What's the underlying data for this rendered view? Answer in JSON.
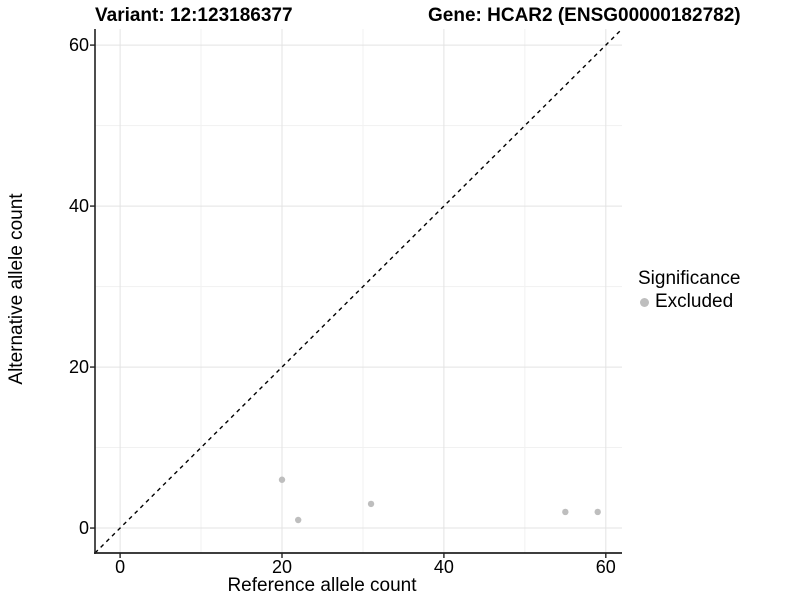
{
  "chart_data": {
    "type": "scatter",
    "title_left": "Variant: 12:123186377",
    "title_right": "Gene: HCAR2 (ENSG00000182782)",
    "xlabel": "Reference allele count",
    "ylabel": "Alternative allele count",
    "xlim": [
      -3.1,
      62
    ],
    "ylim": [
      -3.1,
      62
    ],
    "x_ticks": [
      0,
      20,
      40,
      60
    ],
    "y_ticks": [
      0,
      20,
      40,
      60
    ],
    "x_minor_ticks": [
      10,
      30,
      50
    ],
    "y_minor_ticks": [
      10,
      30,
      50
    ],
    "grid": "major and minor, light gray, white panel background",
    "reference_line": {
      "description": "identity line y = x",
      "slope": 1,
      "intercept": 0,
      "linetype": "dashed",
      "color": "#000000"
    },
    "series": [
      {
        "name": "Excluded",
        "color": "#bebebe",
        "points": [
          {
            "x": 20,
            "y": 6
          },
          {
            "x": 22,
            "y": 1
          },
          {
            "x": 31,
            "y": 3
          },
          {
            "x": 55,
            "y": 2
          },
          {
            "x": 59,
            "y": 2
          }
        ]
      }
    ],
    "legend": {
      "title": "Significance",
      "position": "right",
      "entries": [
        {
          "label": "Excluded",
          "color": "#bebebe",
          "marker": "circle"
        }
      ]
    }
  },
  "colors": {
    "background": "#ffffff",
    "axis_line": "#222222",
    "grid_major": "#e3e3e3",
    "grid_minor": "#f1f1f1",
    "text": "#000000",
    "point": "#bebebe"
  }
}
